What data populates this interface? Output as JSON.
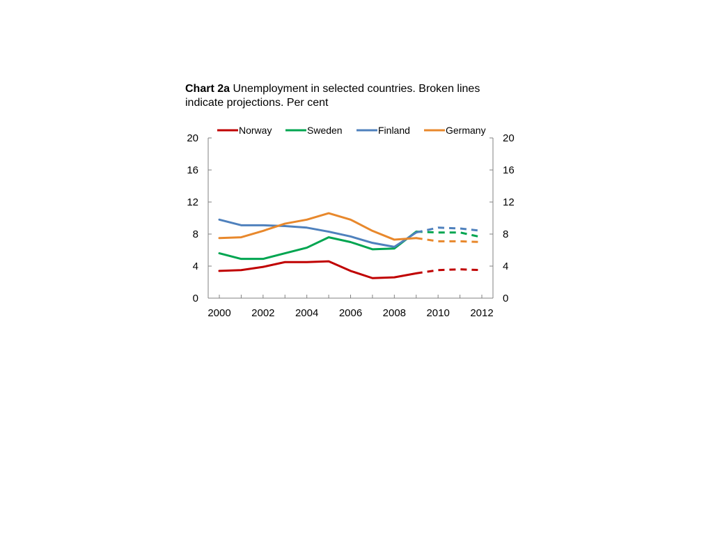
{
  "title": {
    "prefix": "Chart 2a",
    "text": "Unemployment in selected countries. Broken lines indicate projections. Per cent"
  },
  "chart_data": {
    "type": "line",
    "title": "Chart 2a Unemployment in selected countries. Broken lines indicate projections. Per cent",
    "x": [
      2000,
      2001,
      2002,
      2003,
      2004,
      2005,
      2006,
      2007,
      2008,
      2009,
      2010,
      2011,
      2012
    ],
    "x_ticks": [
      "2000",
      "2002",
      "2004",
      "2006",
      "2008",
      "2010",
      "2012"
    ],
    "y_ticks_left": [
      "0",
      "4",
      "8",
      "12",
      "16",
      "20"
    ],
    "y_ticks_right": [
      "0",
      "4",
      "8",
      "12",
      "16",
      "20"
    ],
    "ylim": [
      0,
      20
    ],
    "xlim": [
      2000,
      2012
    ],
    "projection_start": 2009,
    "legend_position": "top",
    "grid": false,
    "series": [
      {
        "name": "Norway",
        "color": "#c00000",
        "values": [
          3.4,
          3.5,
          3.9,
          4.5,
          4.5,
          4.6,
          3.4,
          2.5,
          2.6,
          3.1,
          3.5,
          3.6,
          3.5
        ]
      },
      {
        "name": "Sweden",
        "color": "#00a550",
        "values": [
          5.6,
          4.9,
          4.9,
          5.6,
          6.3,
          7.6,
          7.0,
          6.1,
          6.2,
          8.3,
          8.2,
          8.2,
          7.6
        ]
      },
      {
        "name": "Finland",
        "color": "#4f81bd",
        "values": [
          9.8,
          9.1,
          9.1,
          9.0,
          8.8,
          8.3,
          7.7,
          6.9,
          6.4,
          8.2,
          8.8,
          8.7,
          8.4
        ]
      },
      {
        "name": "Germany",
        "color": "#e8882c",
        "values": [
          7.5,
          7.6,
          8.4,
          9.3,
          9.8,
          10.6,
          9.8,
          8.4,
          7.3,
          7.5,
          7.1,
          7.1,
          7.0
        ]
      }
    ]
  }
}
